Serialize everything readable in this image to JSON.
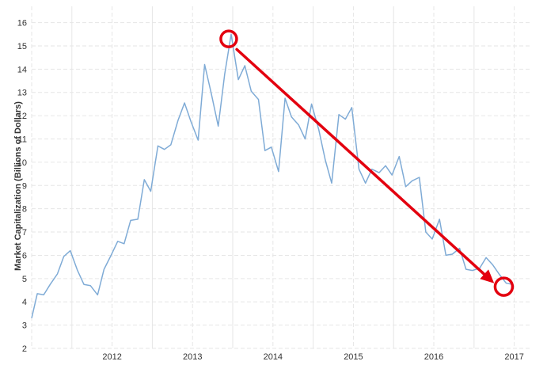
{
  "chart_data": {
    "type": "line",
    "title": "",
    "xlabel": "",
    "ylabel": "Market Capitalization (Billions of Dollars)",
    "x_ticks": [
      "2012",
      "2013",
      "2014",
      "2015",
      "2016",
      "2017"
    ],
    "y_ticks": [
      "2",
      "3",
      "4",
      "5",
      "6",
      "7",
      "8",
      "9",
      "10",
      "11",
      "12",
      "13",
      "14",
      "15",
      "16"
    ],
    "ylim": [
      2,
      16.7
    ],
    "xlim": [
      2011.5,
      2017.72
    ],
    "grid": true,
    "series": [
      {
        "name": "",
        "color": "#7fabd6",
        "points": [
          [
            2011.5,
            3.3
          ],
          [
            2011.57,
            4.35
          ],
          [
            2011.65,
            4.3
          ],
          [
            2011.73,
            4.75
          ],
          [
            2011.82,
            5.2
          ],
          [
            2011.9,
            5.95
          ],
          [
            2011.98,
            6.2
          ],
          [
            2012.07,
            5.35
          ],
          [
            2012.15,
            4.75
          ],
          [
            2012.23,
            4.7
          ],
          [
            2012.32,
            4.3
          ],
          [
            2012.4,
            5.4
          ],
          [
            2012.48,
            5.95
          ],
          [
            2012.57,
            6.6
          ],
          [
            2012.65,
            6.5
          ],
          [
            2012.73,
            7.5
          ],
          [
            2012.82,
            7.55
          ],
          [
            2012.9,
            9.25
          ],
          [
            2012.98,
            8.75
          ],
          [
            2013.07,
            10.7
          ],
          [
            2013.15,
            10.55
          ],
          [
            2013.23,
            10.75
          ],
          [
            2013.32,
            11.8
          ],
          [
            2013.4,
            12.55
          ],
          [
            2013.48,
            11.75
          ],
          [
            2013.57,
            10.95
          ],
          [
            2013.65,
            14.2
          ],
          [
            2013.73,
            13.0
          ],
          [
            2013.82,
            11.55
          ],
          [
            2013.9,
            13.8
          ],
          [
            2013.98,
            15.5
          ],
          [
            2014.07,
            13.55
          ],
          [
            2014.15,
            14.15
          ],
          [
            2014.23,
            13.05
          ],
          [
            2014.32,
            12.7
          ],
          [
            2014.4,
            10.5
          ],
          [
            2014.48,
            10.65
          ],
          [
            2014.57,
            9.6
          ],
          [
            2014.65,
            12.75
          ],
          [
            2014.73,
            11.95
          ],
          [
            2014.82,
            11.6
          ],
          [
            2014.9,
            11.0
          ],
          [
            2014.98,
            12.5
          ],
          [
            2015.07,
            11.4
          ],
          [
            2015.15,
            10.1
          ],
          [
            2015.23,
            9.1
          ],
          [
            2015.32,
            12.05
          ],
          [
            2015.4,
            11.85
          ],
          [
            2015.48,
            12.35
          ],
          [
            2015.57,
            9.7
          ],
          [
            2015.65,
            9.1
          ],
          [
            2015.73,
            9.7
          ],
          [
            2015.82,
            9.55
          ],
          [
            2015.9,
            9.85
          ],
          [
            2015.98,
            9.45
          ],
          [
            2016.07,
            10.25
          ],
          [
            2016.15,
            8.95
          ],
          [
            2016.23,
            9.2
          ],
          [
            2016.32,
            9.35
          ],
          [
            2016.4,
            7.0
          ],
          [
            2016.48,
            6.7
          ],
          [
            2016.57,
            7.55
          ],
          [
            2016.65,
            6.0
          ],
          [
            2016.73,
            6.05
          ],
          [
            2016.82,
            6.3
          ],
          [
            2016.9,
            5.4
          ],
          [
            2016.98,
            5.35
          ],
          [
            2017.07,
            5.45
          ],
          [
            2017.15,
            5.9
          ],
          [
            2017.23,
            5.6
          ],
          [
            2017.32,
            5.15
          ],
          [
            2017.4,
            4.8
          ],
          [
            2017.48,
            4.75
          ]
        ]
      }
    ],
    "annotations": {
      "color": "#e3000f",
      "start_circle": [
        2013.95,
        15.3
      ],
      "end_circle": [
        2017.37,
        4.65
      ],
      "arrow_from": [
        2014.05,
        14.85
      ],
      "arrow_to": [
        2017.25,
        4.8
      ]
    }
  }
}
